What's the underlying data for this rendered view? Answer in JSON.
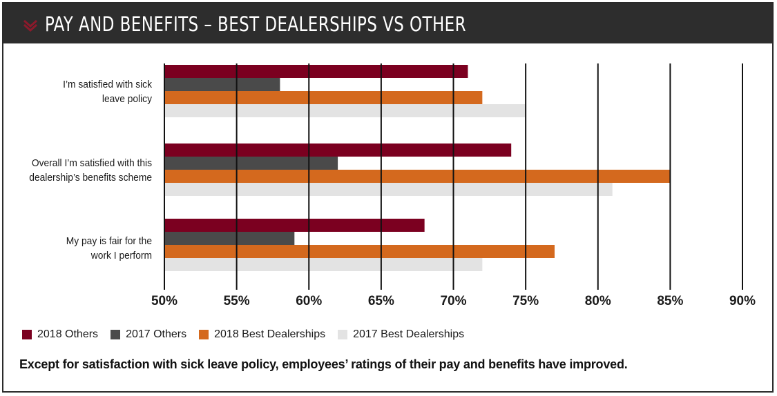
{
  "title": "PAY AND BENEFITS – BEST DEALERSHIPS VS OTHER",
  "caption": "Except for satisfaction with sick leave policy, employees’ ratings of their pay and benefits have improved.",
  "colors": {
    "header_bg": "#2d2d2d",
    "accent_icon": "#8b1a2b",
    "2018 Others": "#7b0020",
    "2017 Others": "#4a4a4a",
    "2018 Best Dealerships": "#d4691e",
    "2017 Best Dealerships": "#e3e3e3"
  },
  "icons": {
    "header": "chevron-down-icon"
  },
  "chart_data": {
    "type": "bar",
    "orientation": "horizontal",
    "categories": [
      [
        "I’m satisfied with sick",
        "leave policy"
      ],
      [
        "Overall I’m satisfied with this",
        "dealership’s benefits scheme"
      ],
      [
        "My pay is fair for the",
        "work I perform"
      ]
    ],
    "series": [
      {
        "name": "2018 Others",
        "values": [
          71,
          74,
          68
        ]
      },
      {
        "name": "2017 Others",
        "values": [
          58,
          62,
          59
        ]
      },
      {
        "name": "2018 Best Dealerships",
        "values": [
          72,
          85,
          77
        ]
      },
      {
        "name": "2017 Best Dealerships",
        "values": [
          75,
          81,
          72
        ]
      }
    ],
    "xlim": [
      50,
      90
    ],
    "xticks": [
      "50%",
      "55%",
      "60%",
      "65%",
      "70%",
      "75%",
      "80%",
      "85%",
      "90%"
    ],
    "grid": true,
    "legend_position": "bottom"
  }
}
